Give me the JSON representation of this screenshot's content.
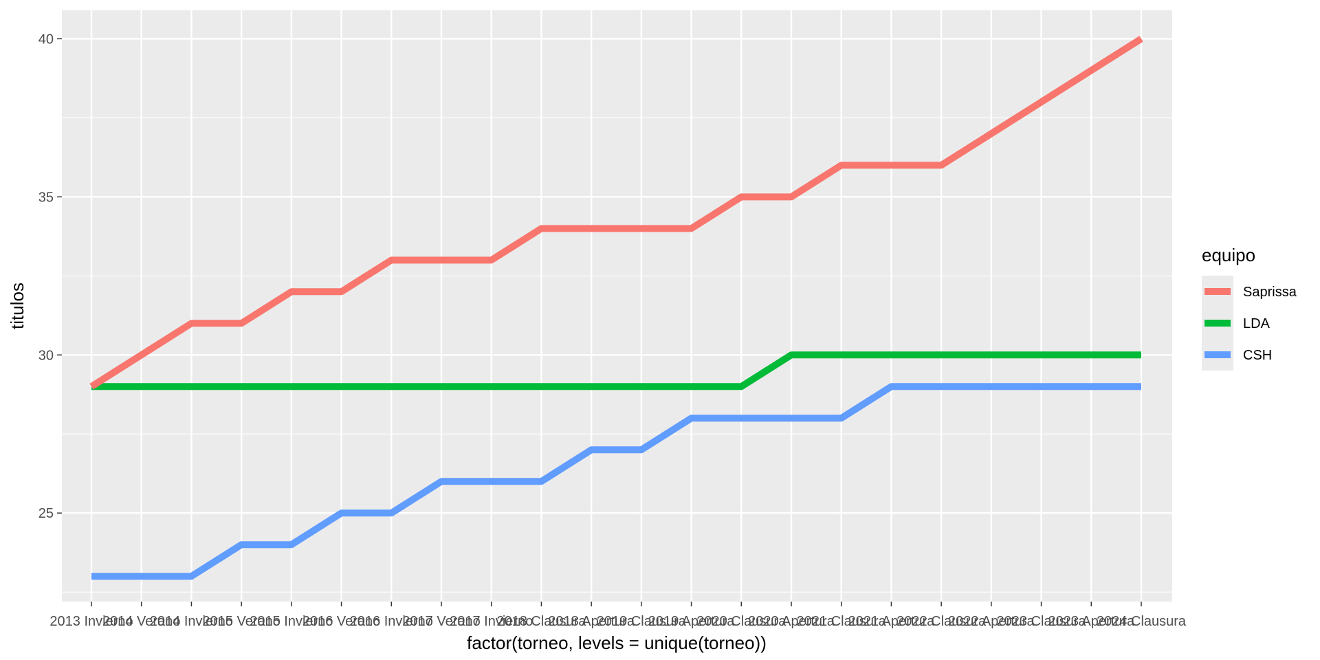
{
  "chart_data": {
    "type": "line",
    "title": "",
    "xlabel": "factor(torneo, levels = unique(torneo))",
    "ylabel": "titulos",
    "categories": [
      "2013 Invierno",
      "2014 Verano",
      "2014 Invierno",
      "2015 Verano",
      "2015 Invierno",
      "2016 Verano",
      "2016 Invierno",
      "2017 Verano",
      "2017 Invierno",
      "2018 Clausura",
      "2018 Apertura",
      "2019 Clausura",
      "2019 Apertura",
      "2020 Clausura",
      "2020 Apertura",
      "2021 Clausura",
      "2021 Apertura",
      "2022 Clausura",
      "2022 Apertura",
      "2023 Clausura",
      "2023 Apertura",
      "2024 Clausura"
    ],
    "series": [
      {
        "name": "Saprissa",
        "color": "#F8766D",
        "values": [
          29,
          30,
          31,
          31,
          32,
          32,
          33,
          33,
          33,
          34,
          34,
          34,
          34,
          35,
          35,
          36,
          36,
          36,
          37,
          38,
          39,
          40
        ]
      },
      {
        "name": "LDA",
        "color": "#00BA38",
        "values": [
          29,
          29,
          29,
          29,
          29,
          29,
          29,
          29,
          29,
          29,
          29,
          29,
          29,
          29,
          30,
          30,
          30,
          30,
          30,
          30,
          30,
          30
        ]
      },
      {
        "name": "CSH",
        "color": "#619CFF",
        "values": [
          23,
          23,
          23,
          24,
          24,
          25,
          25,
          26,
          26,
          26,
          27,
          27,
          28,
          28,
          28,
          28,
          29,
          29,
          29,
          29,
          29,
          29
        ]
      }
    ],
    "ylim": [
      22.2,
      40.9
    ],
    "yticks": [
      25,
      30,
      35,
      40
    ],
    "grid": true,
    "legend": {
      "title": "equipo",
      "position": "right"
    }
  }
}
